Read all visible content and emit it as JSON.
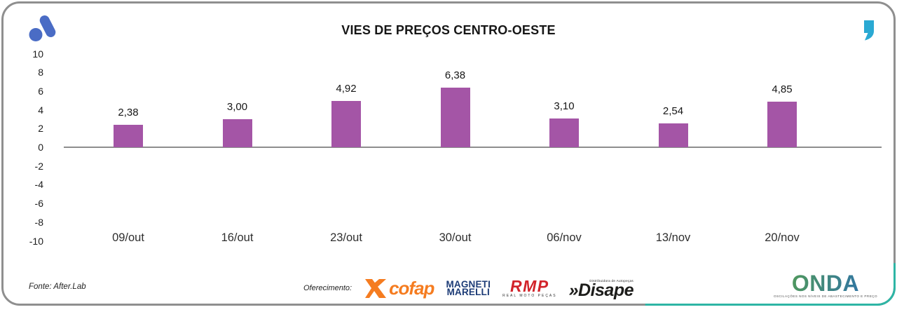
{
  "header": {
    "title": "VIES DE PREÇOS CENTRO-OESTE"
  },
  "branding": {
    "logo_color": "#4a6cc5",
    "quote_color": "#2aa9d3"
  },
  "chart_data": {
    "type": "bar",
    "title": "VIES DE PREÇOS CENTRO-OESTE",
    "categories": [
      "09/out",
      "16/out",
      "23/out",
      "30/out",
      "06/nov",
      "13/nov",
      "20/nov"
    ],
    "values": [
      2.38,
      3.0,
      4.92,
      6.38,
      3.1,
      2.54,
      4.85
    ],
    "value_labels": [
      "2,38",
      "3,00",
      "4,92",
      "6,38",
      "3,10",
      "2,54",
      "4,85"
    ],
    "xlabel": "",
    "ylabel": "",
    "ylim": [
      -10,
      10
    ],
    "y_ticks": [
      10,
      8,
      6,
      4,
      2,
      0,
      -2,
      -4,
      -6,
      -8,
      -10
    ],
    "grid": false,
    "legend_position": "none",
    "bar_color": "#a455a6",
    "axis_line_color": "#8d8d8d"
  },
  "footer": {
    "source": "Fonte: After.Lab",
    "offering_label": "Oferecimento:",
    "sponsors": [
      {
        "name": "Cofap",
        "text": "cofap",
        "color": "#f57c20"
      },
      {
        "name": "Magneti Marelli",
        "line1": "MAGNETI",
        "line2": "MARELLI",
        "color": "#1d3c77"
      },
      {
        "name": "RMP",
        "text": "RMP",
        "caption": "REAL MOTO PEÇAS",
        "color": "#d2232a"
      },
      {
        "name": "Disape",
        "prefix": "»",
        "text": "Disape",
        "caption": "Distribuidora de Autopeças",
        "color": "#1d1d1b"
      }
    ],
    "onda": {
      "text": "ONDA",
      "caption": "OSCILAÇÕES NOS NÍVEIS DE ABASTECIMENTO E PREÇO",
      "gradient_from": "#57a14b",
      "gradient_to": "#2a6db4"
    }
  },
  "frame": {
    "card_border": "#8f8f8f",
    "corner_accent": "#2eb5a5"
  }
}
